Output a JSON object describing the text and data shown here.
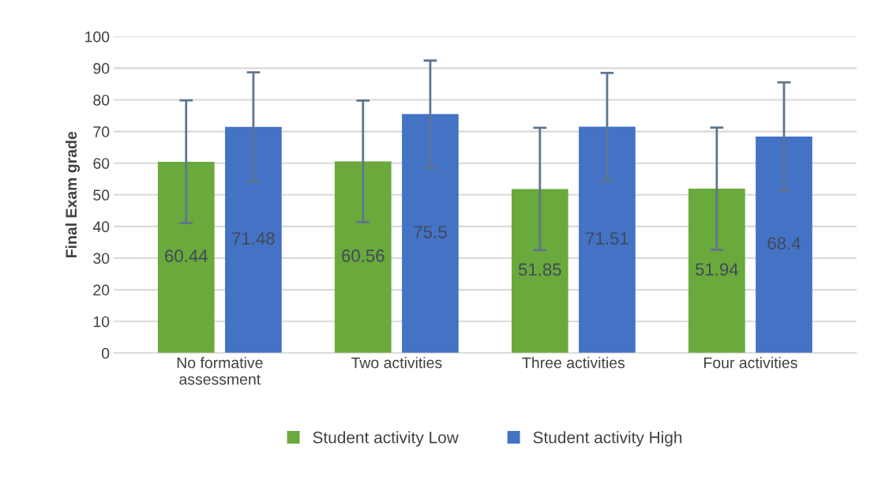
{
  "chart_data": {
    "type": "bar",
    "ylabel": "Final Exam grade",
    "categories": [
      "No formative\nassessment",
      "Two activities",
      "Three activities",
      "Four activities"
    ],
    "series": [
      {
        "name": "Student activity Low",
        "color": "#6aa93b",
        "values": [
          60.44,
          60.56,
          51.85,
          51.94
        ],
        "errors": [
          19.4,
          19.2,
          19.3,
          19.3
        ]
      },
      {
        "name": "Student activity High",
        "color": "#4472c4",
        "values": [
          71.48,
          75.5,
          71.51,
          68.4
        ],
        "errors": [
          17.2,
          16.9,
          17.0,
          17.1
        ]
      }
    ],
    "ylim": [
      0,
      100
    ],
    "yticks": [
      0,
      10,
      20,
      30,
      40,
      50,
      60,
      70,
      80,
      90,
      100
    ],
    "grid": "y",
    "legend": "bottom",
    "data_labels": true
  }
}
